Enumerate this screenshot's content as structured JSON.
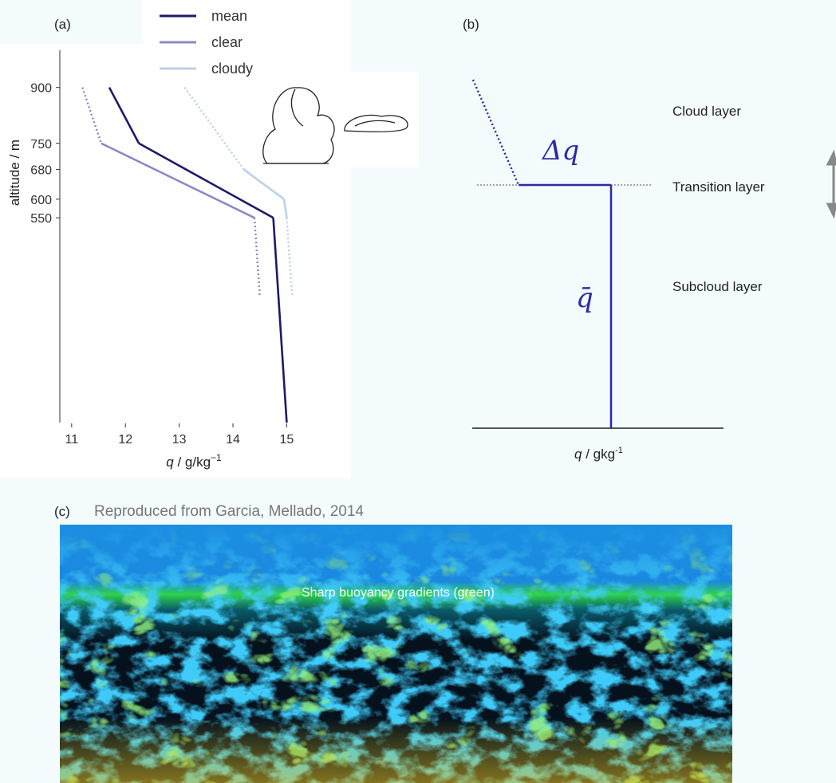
{
  "chart_data": {
    "type": "line",
    "panel_label": "(a)",
    "ylabel": "altitude / m",
    "xlabel": [
      "q",
      " / g/kg",
      "−1"
    ],
    "xlim": [
      10.78,
      15.78
    ],
    "xticks": [
      11,
      12,
      13,
      14,
      15
    ],
    "ylim": [
      0,
      1000
    ],
    "yticks": [
      900,
      750,
      680,
      600,
      550
    ],
    "legend": "top",
    "series": [
      {
        "name": "mean",
        "color": "#1b1a6c",
        "x": [
          11.7,
          12.25,
          14.75,
          15.0
        ],
        "values": [
          900,
          750,
          550,
          0
        ],
        "segment_styles": [
          "solid",
          "solid",
          "solid"
        ]
      },
      {
        "name": "clear",
        "color": "#8b89c9",
        "x": [
          11.2,
          11.55,
          14.4,
          14.5
        ],
        "values": [
          900,
          750,
          550,
          340
        ],
        "segment_styles": [
          "dotted",
          "solid",
          "dotted"
        ]
      },
      {
        "name": "cloudy",
        "color": "#bcd2ea",
        "x": [
          13.1,
          14.2,
          14.95,
          15.0,
          15.1
        ],
        "values": [
          900,
          680,
          600,
          550,
          340
        ],
        "segment_styles": [
          "dotted",
          "solid",
          "solid",
          "dotted"
        ]
      }
    ]
  },
  "panel_b": {
    "label": "(b)",
    "delta": "Δq",
    "mean": "q̄",
    "layers": [
      "Cloud layer",
      "Transition layer",
      "Subcloud layer"
    ],
    "xlabel": [
      "q",
      " / gkg",
      "-1"
    ]
  },
  "panel_c": {
    "label": "(c)",
    "credit": "Reproduced from Garcia, Mellado, 2014",
    "annotation": "Sharp buoyancy gradients (green)"
  }
}
